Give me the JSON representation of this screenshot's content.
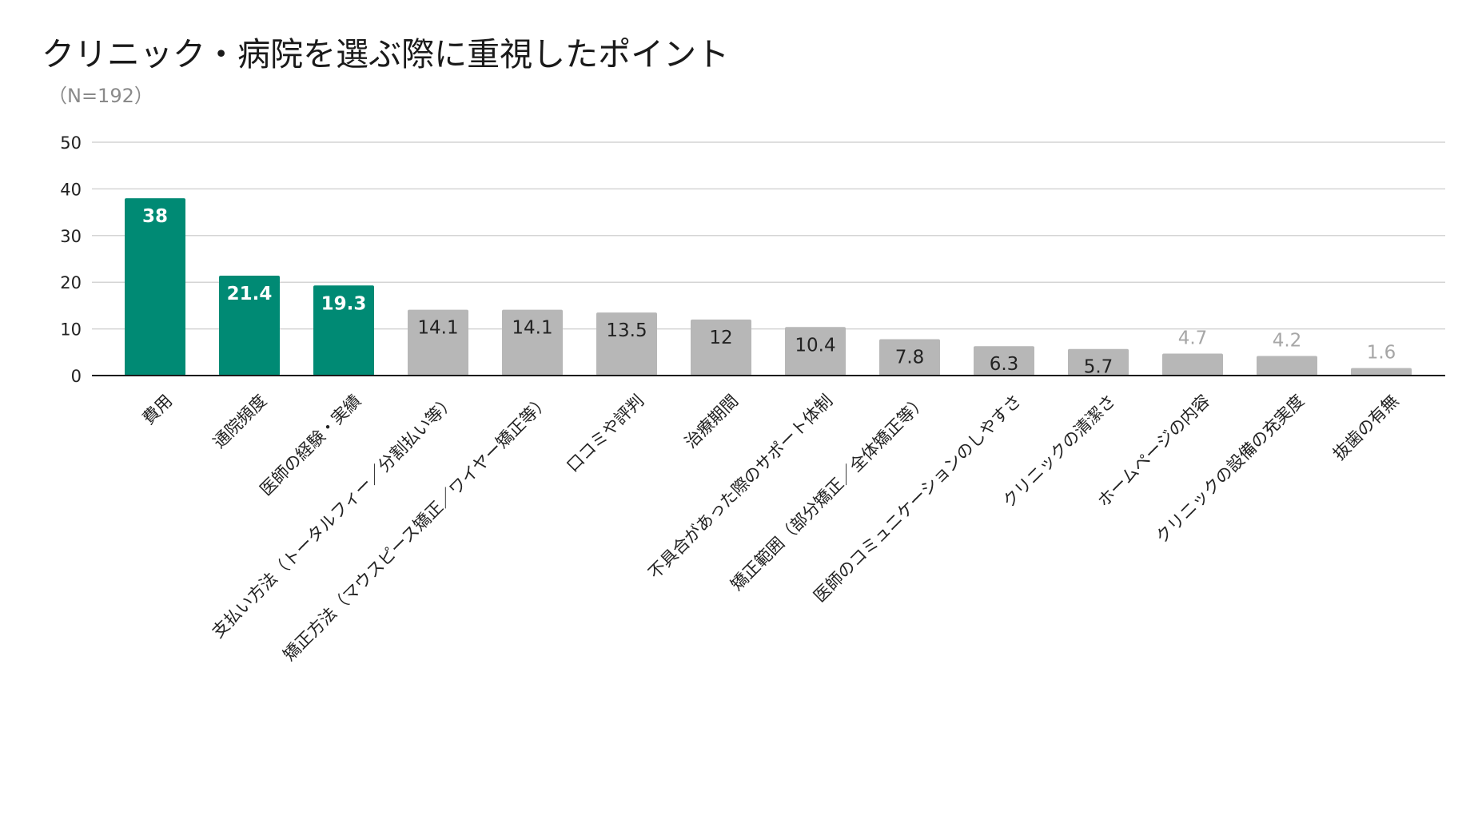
{
  "chart_data": {
    "type": "bar",
    "title": "クリニック・病院を選ぶ際に重視したポイント",
    "subtitle": "（N=192）",
    "xlabel": "",
    "ylabel": "",
    "ylim": [
      0,
      50
    ],
    "yticks": [
      0,
      10,
      20,
      30,
      40,
      50
    ],
    "grid": true,
    "legend": "none",
    "highlight_color": "#008a74",
    "default_color": "#b7b7b7",
    "highlight_label_color": "#ffffff",
    "default_label_color": "#222222",
    "outside_label_color": "#a6a6a6",
    "categories": [
      "費用",
      "通院頻度",
      "医師の経験・実績",
      "支払い方法（トータルフィー／分割払い等）",
      "矯正方法（マウスピース矯正／ワイヤー矯正等）",
      "口コミや評判",
      "治療期間",
      "不具合があった際のサポート体制",
      "矯正範囲（部分矯正／全体矯正等）",
      "医師のコミュニケーションのしやすさ",
      "クリニックの清潔さ",
      "ホームページの内容",
      "クリニックの設備の充実度",
      "抜歯の有無"
    ],
    "values": [
      38,
      21.4,
      19.3,
      14.1,
      14.1,
      13.5,
      12,
      10.4,
      7.8,
      6.3,
      5.7,
      4.7,
      4.2,
      1.6
    ],
    "value_labels": [
      "38",
      "21.4",
      "19.3",
      "14.1",
      "14.1",
      "13.5",
      "12",
      "10.4",
      "7.8",
      "6.3",
      "5.7",
      "4.7",
      "4.2",
      "1.6"
    ],
    "highlighted": [
      true,
      true,
      true,
      false,
      false,
      false,
      false,
      false,
      false,
      false,
      false,
      false,
      false,
      false
    ],
    "label_outside": [
      false,
      false,
      false,
      false,
      false,
      false,
      false,
      false,
      false,
      false,
      false,
      true,
      true,
      true
    ]
  }
}
